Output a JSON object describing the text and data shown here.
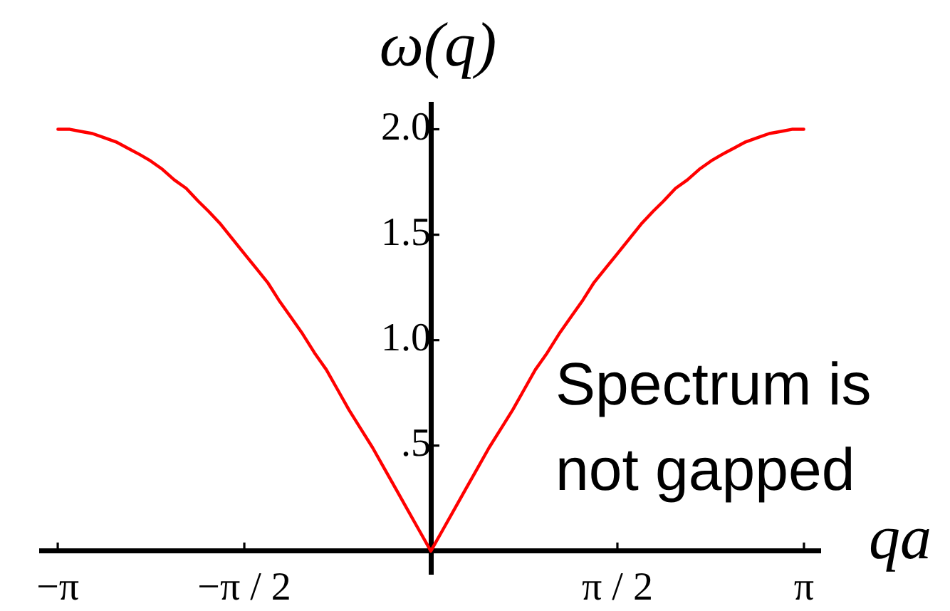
{
  "chart_data": {
    "type": "line",
    "xlabel": "qa",
    "ylabel": "ω(q)",
    "annotations": [
      "Spectrum is not gapped"
    ],
    "x": [
      -3.14,
      -3.04,
      -2.95,
      -2.85,
      -2.75,
      -2.65,
      -2.55,
      -2.45,
      -2.36,
      -2.26,
      -2.16,
      -2.06,
      -1.96,
      -1.87,
      -1.77,
      -1.67,
      -1.57,
      -1.47,
      -1.37,
      -1.28,
      -1.18,
      -1.08,
      -0.98,
      -0.88,
      -0.79,
      -0.69,
      -0.59,
      -0.49,
      -0.39,
      -0.29,
      -0.2,
      -0.1,
      0,
      0.1,
      0.2,
      0.29,
      0.39,
      0.49,
      0.59,
      0.69,
      0.79,
      0.88,
      0.98,
      1.08,
      1.18,
      1.28,
      1.37,
      1.47,
      1.57,
      1.67,
      1.77,
      1.87,
      1.96,
      2.06,
      2.16,
      2.26,
      2.36,
      2.45,
      2.55,
      2.65,
      2.75,
      2.85,
      2.95,
      3.04,
      3.14
    ],
    "values": [
      2.0,
      2.0,
      1.99,
      1.98,
      1.96,
      1.94,
      1.91,
      1.88,
      1.85,
      1.81,
      1.76,
      1.72,
      1.66,
      1.61,
      1.55,
      1.48,
      1.41,
      1.34,
      1.27,
      1.19,
      1.11,
      1.03,
      0.94,
      0.86,
      0.77,
      0.67,
      0.58,
      0.49,
      0.39,
      0.29,
      0.2,
      0.1,
      0,
      0.1,
      0.2,
      0.29,
      0.39,
      0.49,
      0.58,
      0.67,
      0.77,
      0.86,
      0.94,
      1.03,
      1.11,
      1.19,
      1.27,
      1.34,
      1.41,
      1.48,
      1.55,
      1.61,
      1.66,
      1.72,
      1.76,
      1.81,
      1.85,
      1.88,
      1.91,
      1.94,
      1.96,
      1.98,
      1.99,
      2.0,
      2.0
    ],
    "color": "#ff0000",
    "xlim": [
      -3.28,
      3.28
    ],
    "ylim": [
      -0.11,
      2.12
    ],
    "xticks": [
      {
        "value": -3.1416,
        "label": "−π"
      },
      {
        "value": -1.5708,
        "label": "−π / 2"
      },
      {
        "value": 1.5708,
        "label": "π / 2"
      },
      {
        "value": 3.1416,
        "label": "π"
      }
    ],
    "yticks": [
      {
        "value": 0.5,
        "label": ".5"
      },
      {
        "value": 1,
        "label": "1.0"
      },
      {
        "value": 1.5,
        "label": "1.5"
      },
      {
        "value": 2,
        "label": "2.0"
      }
    ],
    "grid": false,
    "legend": false,
    "marker": "none",
    "line_style": "solid"
  }
}
